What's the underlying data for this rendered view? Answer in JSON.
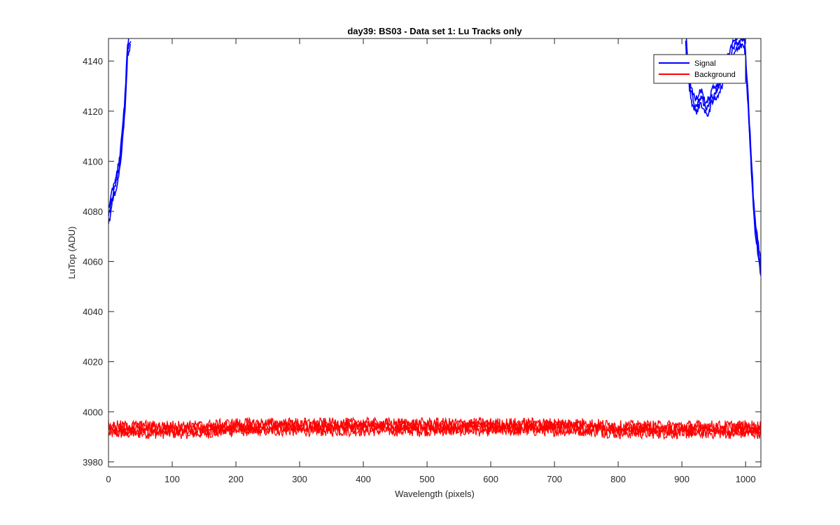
{
  "chart_data": {
    "type": "line",
    "title": "day39: BS03 - Data set 1: Lu Tracks only",
    "xlabel": "Wavelength (pixels)",
    "ylabel": "LuTop (ADU)",
    "xlim": [
      0,
      1024
    ],
    "ylim": [
      3978,
      4149
    ],
    "xticks": [
      0,
      100,
      200,
      300,
      400,
      500,
      600,
      700,
      800,
      900,
      1000
    ],
    "yticks": [
      3980,
      4000,
      4020,
      4040,
      4060,
      4080,
      4100,
      4120,
      4140
    ],
    "grid": false,
    "legend_position": "top-right",
    "series": [
      {
        "name": "Signal",
        "color": "#0000ff",
        "segments": [
          {
            "x": [
              0,
              3,
              6,
              10,
              14,
              18,
              22,
              26,
              30,
              35
            ],
            "y": [
              4078,
              4081,
              4086,
              4090,
              4094,
              4100,
              4110,
              4124,
              4145,
              4149
            ]
          },
          {
            "x": [
              906,
              910,
              914,
              918,
              922,
              926,
              930,
              934,
              938,
              942,
              946,
              950,
              954,
              958,
              962,
              966,
              970,
              974,
              978,
              982,
              986,
              990,
              994,
              998
            ],
            "y": [
              4149,
              4136,
              4128,
              4124,
              4122,
              4124,
              4126,
              4123,
              4121,
              4122,
              4125,
              4127,
              4128,
              4130,
              4132,
              4135,
              4138,
              4141,
              4144,
              4146,
              4147,
              4148,
              4149,
              4149
            ]
          },
          {
            "x": [
              998,
              1001,
              1004,
              1007,
              1010,
              1013,
              1016,
              1019,
              1022,
              1024
            ],
            "y": [
              4149,
              4136,
              4124,
              4108,
              4094,
              4080,
              4072,
              4066,
              4060,
              4056
            ]
          }
        ]
      },
      {
        "name": "Background",
        "color": "#ff0000",
        "x": [
          0,
          50,
          100,
          150,
          200,
          250,
          300,
          350,
          400,
          450,
          500,
          550,
          600,
          650,
          700,
          750,
          800,
          850,
          900,
          950,
          1000,
          1024
        ],
        "y": [
          3993,
          3993,
          3993,
          3993,
          3994,
          3994,
          3994,
          3994,
          3994,
          3994,
          3994,
          3994,
          3994,
          3994,
          3994,
          3994,
          3993,
          3993,
          3993,
          3993,
          3993,
          3993
        ],
        "spread": 5
      }
    ]
  }
}
